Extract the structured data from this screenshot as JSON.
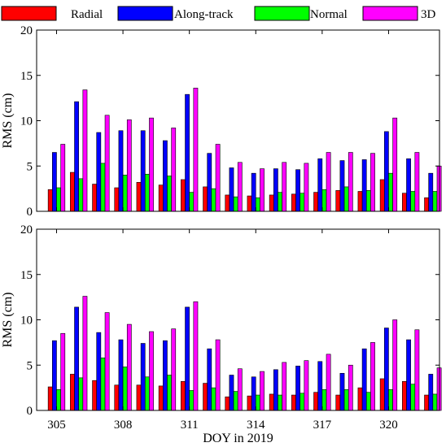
{
  "legend": [
    {
      "name": "Radial",
      "color": "#ff0000"
    },
    {
      "name": "Along-track",
      "color": "#0000ff"
    },
    {
      "name": "Normal",
      "color": "#00ff00"
    },
    {
      "name": "3D",
      "color": "#ff00ff"
    }
  ],
  "chart_data": [
    {
      "type": "bar",
      "panel": "top",
      "x": [
        305,
        306,
        307,
        308,
        309,
        310,
        311,
        312,
        313,
        314,
        315,
        316,
        317,
        318,
        319,
        320,
        321,
        322
      ],
      "series": [
        {
          "name": "Radial",
          "values": [
            2.4,
            4.3,
            3.0,
            2.6,
            3.2,
            2.9,
            3.5,
            2.7,
            1.8,
            1.7,
            1.8,
            1.9,
            2.1,
            2.3,
            2.2,
            3.5,
            2.0,
            1.5
          ]
        },
        {
          "name": "Along-track",
          "values": [
            6.5,
            12.1,
            8.7,
            8.9,
            8.9,
            7.8,
            12.9,
            6.4,
            4.8,
            4.2,
            4.7,
            4.6,
            5.8,
            5.6,
            5.7,
            8.8,
            5.8,
            4.2
          ]
        },
        {
          "name": "Normal",
          "values": [
            2.6,
            3.6,
            5.3,
            4.0,
            4.1,
            3.9,
            2.1,
            2.5,
            1.6,
            1.5,
            2.1,
            2.0,
            2.4,
            2.7,
            2.3,
            4.2,
            2.2,
            2.2
          ]
        },
        {
          "name": "3D",
          "values": [
            7.4,
            13.4,
            10.6,
            10.1,
            10.3,
            9.2,
            13.6,
            7.4,
            5.4,
            4.7,
            5.4,
            5.3,
            6.5,
            6.5,
            6.4,
            10.3,
            6.5,
            5.0
          ]
        }
      ],
      "ylabel": "RMS (cm)",
      "xlabel": "",
      "ylim": [
        0,
        20
      ],
      "yticks": [
        0,
        5,
        10,
        15,
        20
      ],
      "xticks": [
        305,
        308,
        311,
        314,
        317,
        320
      ],
      "grid": false
    },
    {
      "type": "bar",
      "panel": "bottom",
      "x": [
        305,
        306,
        307,
        308,
        309,
        310,
        311,
        312,
        313,
        314,
        315,
        316,
        317,
        318,
        319,
        320,
        321,
        322
      ],
      "series": [
        {
          "name": "Radial",
          "values": [
            2.6,
            4.0,
            3.3,
            2.8,
            2.8,
            2.7,
            3.2,
            3.0,
            1.5,
            1.6,
            1.8,
            1.7,
            2.0,
            1.7,
            2.5,
            3.5,
            3.2,
            1.7
          ]
        },
        {
          "name": "Along-track",
          "values": [
            7.7,
            11.4,
            8.6,
            7.8,
            7.4,
            7.7,
            11.4,
            6.8,
            3.9,
            3.7,
            4.5,
            4.9,
            5.4,
            4.1,
            6.8,
            9.1,
            7.8,
            4.0
          ]
        },
        {
          "name": "Normal",
          "values": [
            2.3,
            3.6,
            5.8,
            4.8,
            3.7,
            3.9,
            2.2,
            2.5,
            2.1,
            1.7,
            1.7,
            1.9,
            2.3,
            2.3,
            2.0,
            2.3,
            2.9,
            1.8
          ]
        },
        {
          "name": "3D",
          "values": [
            8.5,
            12.6,
            10.8,
            9.5,
            8.7,
            9.0,
            12.0,
            7.8,
            4.6,
            4.3,
            5.3,
            5.5,
            6.2,
            5.0,
            7.5,
            10.0,
            8.9,
            4.7
          ]
        }
      ],
      "ylabel": "RMS (cm)",
      "xlabel": "DOY in 2019",
      "ylim": [
        0,
        20
      ],
      "yticks": [
        0,
        5,
        10,
        15,
        20
      ],
      "xticks": [
        305,
        308,
        311,
        314,
        317,
        320
      ],
      "grid": false
    }
  ]
}
